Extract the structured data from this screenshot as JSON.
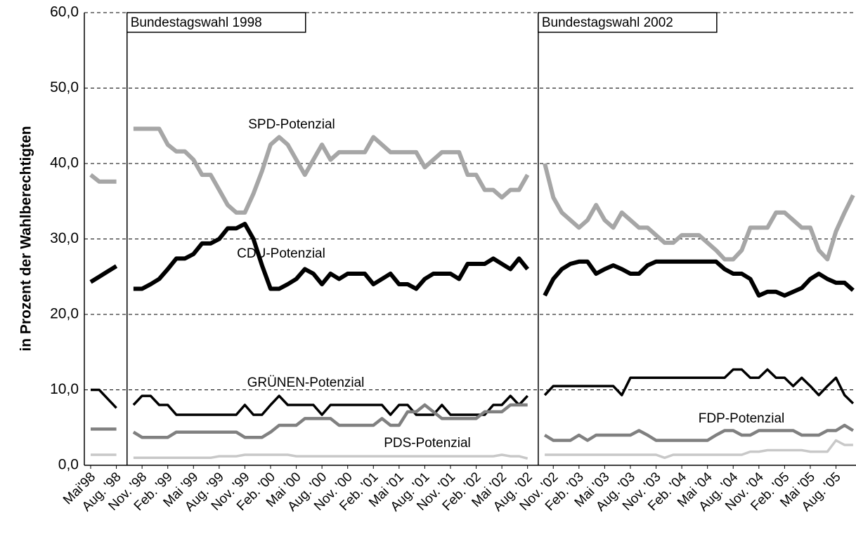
{
  "chart_data": {
    "type": "line",
    "y_label": "in Prozent der Wahlberechtigten",
    "annotations": [
      "Bundestagswahl 1998",
      "Bundestagswahl 2002"
    ],
    "categories": [
      "Mai'98",
      null,
      null,
      "Aug. '98",
      null,
      null,
      "Nov. '98",
      null,
      null,
      "Feb. '99",
      null,
      null,
      "Mai '99",
      null,
      null,
      "Aug. '99",
      null,
      null,
      "Nov. '99",
      null,
      null,
      "Feb. '00",
      null,
      null,
      "Mai '00",
      null,
      null,
      "Aug. '00",
      null,
      null,
      "Nov. '00",
      null,
      null,
      "Feb. '01",
      null,
      null,
      "Mai '01",
      null,
      null,
      "Aug. '01",
      null,
      null,
      "Nov. '01",
      null,
      null,
      "Feb. '02",
      null,
      null,
      "Mai '02",
      null,
      null,
      "Aug. '02",
      null,
      null,
      "Nov. '02",
      null,
      null,
      "Feb. '03",
      null,
      null,
      "Mai '03",
      null,
      null,
      "Aug. '03",
      null,
      null,
      "Nov. '03",
      null,
      null,
      "Feb. '04",
      null,
      null,
      "Mai '04",
      null,
      null,
      "Aug. '04",
      null,
      null,
      "Nov. '04",
      null,
      null,
      "Feb. '05",
      null,
      null,
      "Mai '05",
      null,
      null,
      "Aug. '05",
      null,
      null
    ],
    "series": [
      {
        "name": "SPD-Potenzial",
        "color": "#a6a6a6",
        "line_width": 6,
        "values": [
          38.5,
          37.6,
          37.6,
          37.6,
          null,
          44.6,
          44.6,
          44.6,
          44.6,
          42.5,
          41.6,
          41.6,
          40.5,
          38.5,
          38.5,
          36.5,
          34.5,
          33.5,
          33.5,
          36,
          39,
          42.5,
          43.5,
          42.5,
          40.5,
          38.5,
          40.5,
          42.5,
          40.5,
          41.5,
          41.5,
          41.5,
          41.5,
          43.5,
          42.5,
          41.5,
          41.5,
          41.5,
          41.5,
          39.5,
          40.5,
          41.5,
          41.5,
          41.5,
          38.5,
          38.5,
          36.5,
          36.5,
          35.5,
          36.5,
          36.5,
          38.5,
          null,
          40,
          35.5,
          33.5,
          32.5,
          31.5,
          32.5,
          34.5,
          32.5,
          31.5,
          33.5,
          32.5,
          31.5,
          31.5,
          30.5,
          29.5,
          29.5,
          30.5,
          30.5,
          30.5,
          29.5,
          28.5,
          27.3,
          27.3,
          28.5,
          31.5,
          31.5,
          31.5,
          33.5,
          33.5,
          32.5,
          31.5,
          31.5,
          28.5,
          27.3,
          31,
          33.5,
          35.8
        ]
      },
      {
        "name": "CDU-Potenzial",
        "color": "#000000",
        "line_width": 6,
        "values": [
          24.3,
          25,
          25.7,
          26.4,
          null,
          23.4,
          23.4,
          24,
          24.7,
          26,
          27.4,
          27.4,
          28,
          29.4,
          29.4,
          30,
          31.4,
          31.4,
          32,
          30,
          26.5,
          23.4,
          23.4,
          24,
          24.7,
          26,
          25.4,
          24,
          25.4,
          24.7,
          25.4,
          25.4,
          25.4,
          24,
          24.7,
          25.4,
          24,
          24,
          23.4,
          24.7,
          25.4,
          25.4,
          25.4,
          24.7,
          26.7,
          26.7,
          26.7,
          27.4,
          26.7,
          26,
          27.4,
          26,
          null,
          22.5,
          24.7,
          26,
          26.7,
          27,
          27,
          25.4,
          26,
          26.5,
          26,
          25.4,
          25.4,
          26.5,
          27,
          27,
          27,
          27,
          27,
          27,
          27,
          27,
          26,
          25.4,
          25.4,
          24.7,
          22.5,
          23,
          23,
          22.5,
          23,
          23.5,
          24.7,
          25.4,
          24.7,
          24.2,
          24.2,
          23.2
        ]
      },
      {
        "name": "GRÜNEN-Potenzial",
        "color": "#000000",
        "line_width": 3.5,
        "values": [
          10,
          10,
          8.8,
          7.6,
          null,
          8,
          9.2,
          9.2,
          8,
          8,
          6.7,
          6.7,
          6.7,
          6.7,
          6.7,
          6.7,
          6.7,
          6.7,
          8,
          6.7,
          6.7,
          8,
          9.2,
          8,
          8,
          8,
          8,
          6.7,
          8,
          8,
          8,
          8,
          8,
          8,
          8,
          6.7,
          8,
          8,
          6.7,
          6.7,
          6.7,
          8,
          6.7,
          6.7,
          6.7,
          6.7,
          6.7,
          8,
          8,
          9.2,
          8,
          9.2,
          null,
          9.3,
          10.5,
          10.5,
          10.5,
          10.5,
          10.5,
          10.5,
          10.5,
          10.5,
          9.3,
          11.6,
          11.6,
          11.6,
          11.6,
          11.6,
          11.6,
          11.6,
          11.6,
          11.6,
          11.6,
          11.6,
          11.6,
          12.7,
          12.7,
          11.6,
          11.6,
          12.7,
          11.6,
          11.6,
          10.5,
          11.6,
          10.5,
          9.3,
          10.5,
          11.6,
          9.3,
          8.2
        ]
      },
      {
        "name": "FDP-Potenzial",
        "color": "#808080",
        "line_width": 4.5,
        "values": [
          4.8,
          4.8,
          4.8,
          4.8,
          null,
          4.4,
          3.7,
          3.7,
          3.7,
          3.7,
          4.4,
          4.4,
          4.4,
          4.4,
          4.4,
          4.4,
          4.4,
          4.4,
          3.7,
          3.7,
          3.7,
          4.4,
          5.3,
          5.3,
          5.3,
          6.2,
          6.2,
          6.2,
          6.2,
          5.3,
          5.3,
          5.3,
          5.3,
          5.3,
          6.2,
          5.3,
          5.3,
          7.1,
          7.1,
          8,
          7.1,
          6.2,
          6.2,
          6.2,
          6.2,
          6.2,
          7.1,
          7.1,
          7.1,
          8,
          8,
          8,
          null,
          4,
          3.3,
          3.3,
          3.3,
          4,
          3.3,
          4,
          4,
          4,
          4,
          4,
          4.6,
          4,
          3.3,
          3.3,
          3.3,
          3.3,
          3.3,
          3.3,
          3.3,
          4,
          4.6,
          4.6,
          4,
          4,
          4.6,
          4.6,
          4.6,
          4.6,
          4.6,
          4,
          4,
          4,
          4.6,
          4.6,
          5.3,
          4.6
        ]
      },
      {
        "name": "PDS-Potenzial",
        "color": "#c8c8c8",
        "line_width": 3.5,
        "values": [
          1.4,
          1.4,
          1.4,
          1.4,
          null,
          1,
          1,
          1,
          1,
          1,
          1,
          1,
          1,
          1,
          1,
          1.2,
          1.2,
          1.2,
          1.4,
          1.4,
          1.4,
          1.4,
          1.4,
          1.4,
          1.2,
          1.2,
          1.2,
          1.2,
          1.2,
          1.2,
          1.2,
          1.2,
          1.2,
          1.2,
          1.2,
          1.2,
          1.2,
          1.2,
          1.2,
          1.2,
          1.2,
          1.2,
          1.2,
          1.2,
          1.2,
          1.2,
          1.2,
          1.2,
          1.4,
          1.2,
          1.2,
          0.9,
          null,
          1.4,
          1.4,
          1.4,
          1.4,
          1.4,
          1.4,
          1.4,
          1.4,
          1.4,
          1.4,
          1.4,
          1.4,
          1.4,
          1.4,
          1,
          1.4,
          1.4,
          1.4,
          1.4,
          1.4,
          1.4,
          1.4,
          1.4,
          1.4,
          1.8,
          1.8,
          2,
          2,
          2,
          2,
          2,
          1.8,
          1.8,
          1.8,
          3.3,
          2.7,
          2.7
        ]
      }
    ],
    "ylim": [
      0,
      60
    ],
    "yticks": [
      {
        "value": 0,
        "label": "0,0"
      },
      {
        "value": 10,
        "label": "10,0"
      },
      {
        "value": 20,
        "label": "20,0"
      },
      {
        "value": 30,
        "label": "30,0"
      },
      {
        "value": 40,
        "label": "40,0"
      },
      {
        "value": 50,
        "label": "50,0"
      },
      {
        "value": 60,
        "label": "60,0"
      }
    ],
    "grid": true
  }
}
